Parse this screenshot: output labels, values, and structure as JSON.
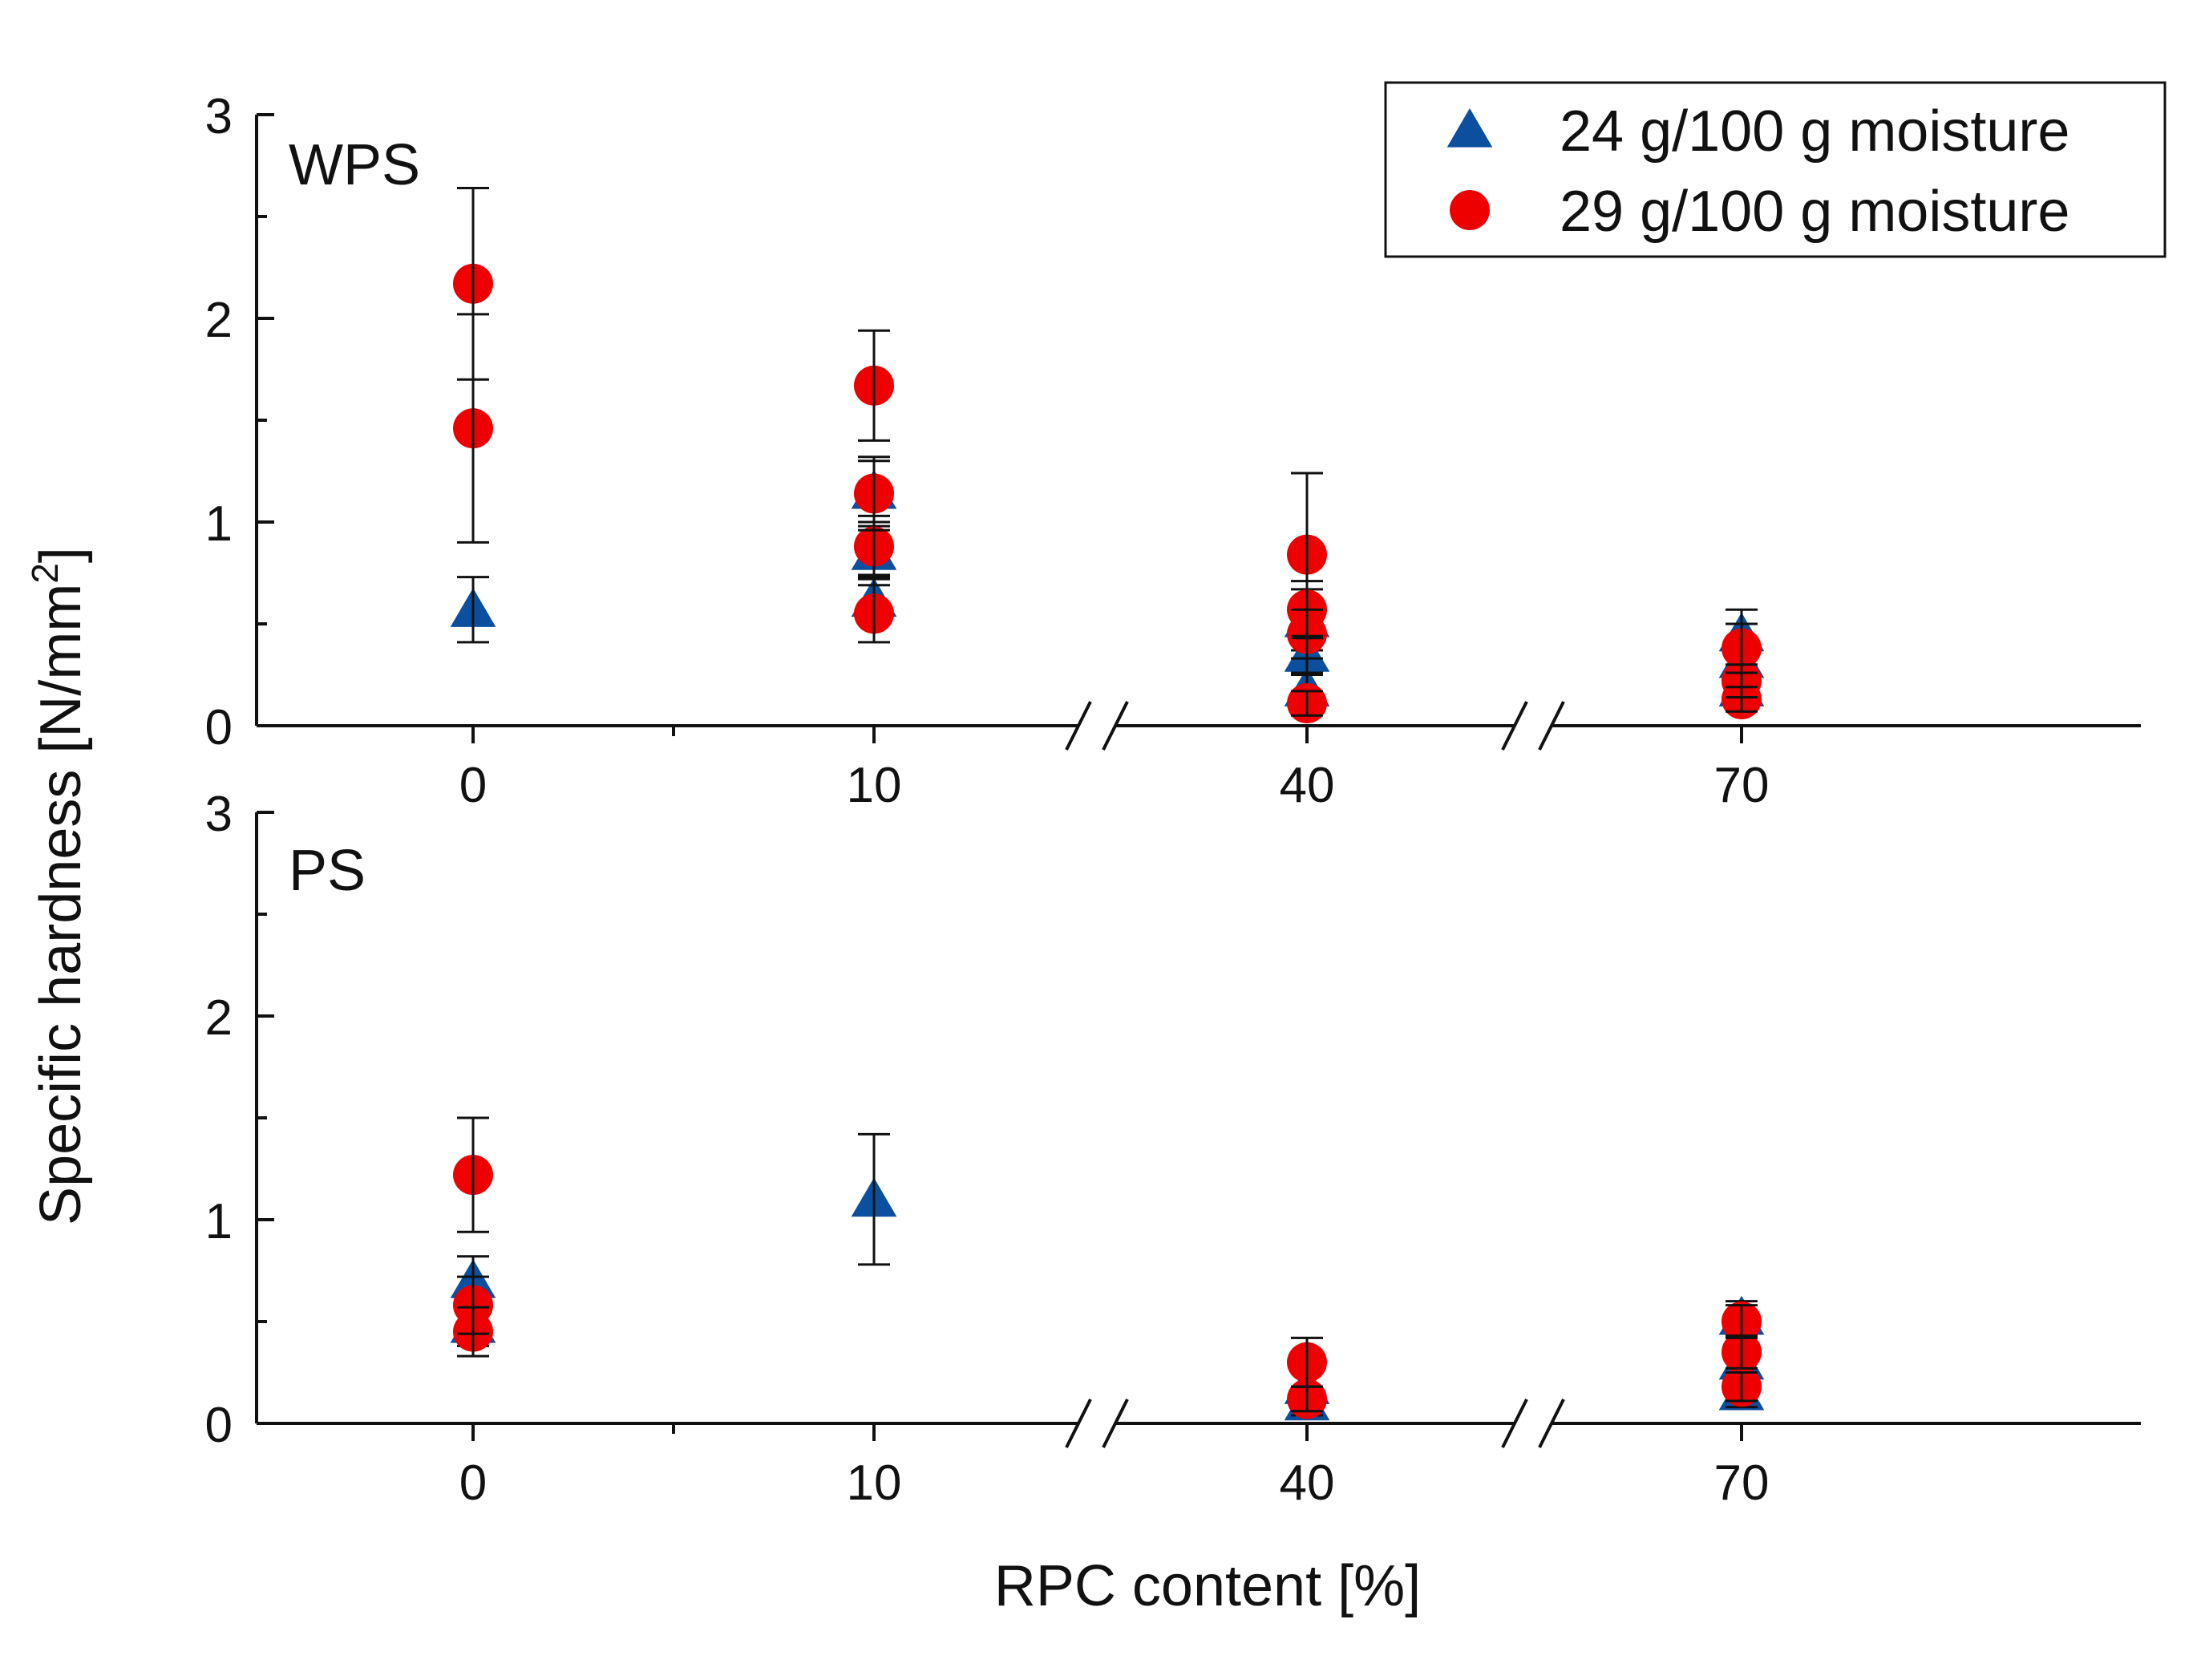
{
  "chart_data": {
    "type": "scatter",
    "ylabel": "Specific hardness [N/mm",
    "ylabel_sup": "2",
    "ylabel_close": "]",
    "xlabel": "RPC content [%]",
    "categories": [
      "0",
      "10",
      "40",
      "70"
    ],
    "x_axis_break": "between 10 and 40, and between 40 and 70",
    "legend_position": "top-right",
    "legend": [
      {
        "name": "24 g/100 g moisture",
        "marker": "triangle",
        "color": "#0b4f9e"
      },
      {
        "name": "29 g/100 g moisture",
        "marker": "circle",
        "color": "#ee0000"
      }
    ],
    "panels": [
      {
        "label": "WPS",
        "ylim": [
          0,
          3
        ],
        "yticks": [
          0,
          1,
          2,
          3
        ],
        "series": [
          {
            "name": "24 g/100 g moisture",
            "points": [
              {
                "x": "0",
                "y": 0.57,
                "err": 0.16
              },
              {
                "x": "10",
                "y": 1.15,
                "err": 0.15
              },
              {
                "x": "10",
                "y": 0.85,
                "err": 0.13
              },
              {
                "x": "10",
                "y": 0.62,
                "err": 0.12
              },
              {
                "x": "40",
                "y": 0.52,
                "err": 0.15
              },
              {
                "x": "40",
                "y": 0.35,
                "err": 0.1
              },
              {
                "x": "40",
                "y": 0.18,
                "err": 0.08
              },
              {
                "x": "70",
                "y": 0.45,
                "err": 0.12
              },
              {
                "x": "70",
                "y": 0.32,
                "err": 0.1
              },
              {
                "x": "70",
                "y": 0.18,
                "err": 0.08
              }
            ]
          },
          {
            "name": "29 g/100 g moisture",
            "points": [
              {
                "x": "0",
                "y": 2.17,
                "err": 0.47
              },
              {
                "x": "0",
                "y": 1.46,
                "err": 0.56
              },
              {
                "x": "10",
                "y": 1.67,
                "err": 0.27
              },
              {
                "x": "10",
                "y": 1.14,
                "err": 0.18
              },
              {
                "x": "10",
                "y": 0.88,
                "err": 0.15
              },
              {
                "x": "10",
                "y": 0.55,
                "err": 0.14
              },
              {
                "x": "40",
                "y": 0.84,
                "err": 0.4
              },
              {
                "x": "40",
                "y": 0.57,
                "err": 0.14
              },
              {
                "x": "40",
                "y": 0.45,
                "err": 0.12
              },
              {
                "x": "40",
                "y": 0.11,
                "err": 0.06
              },
              {
                "x": "70",
                "y": 0.38,
                "err": 0.12
              },
              {
                "x": "70",
                "y": 0.22,
                "err": 0.08
              },
              {
                "x": "70",
                "y": 0.13,
                "err": 0.06
              }
            ]
          }
        ]
      },
      {
        "label": "PS",
        "ylim": [
          0,
          3
        ],
        "yticks": [
          0,
          1,
          2,
          3
        ],
        "series": [
          {
            "name": "24 g/100 g moisture",
            "points": [
              {
                "x": "0",
                "y": 0.7,
                "err": 0.12
              },
              {
                "x": "0",
                "y": 0.48,
                "err": 0.1
              },
              {
                "x": "10",
                "y": 1.1,
                "err": 0.32
              },
              {
                "x": "40",
                "y": 0.18,
                "err": 0.08
              },
              {
                "x": "40",
                "y": 0.1,
                "err": 0.06
              },
              {
                "x": "70",
                "y": 0.52,
                "err": 0.08
              },
              {
                "x": "70",
                "y": 0.3,
                "err": 0.08
              },
              {
                "x": "70",
                "y": 0.15,
                "err": 0.07
              }
            ]
          },
          {
            "name": "29 g/100 g moisture",
            "points": [
              {
                "x": "0",
                "y": 1.22,
                "err": 0.28
              },
              {
                "x": "0",
                "y": 0.58,
                "err": 0.14
              },
              {
                "x": "0",
                "y": 0.45,
                "err": 0.12
              },
              {
                "x": "40",
                "y": 0.3,
                "err": 0.12
              },
              {
                "x": "40",
                "y": 0.12,
                "err": 0.06
              },
              {
                "x": "70",
                "y": 0.5,
                "err": 0.08
              },
              {
                "x": "70",
                "y": 0.35,
                "err": 0.08
              },
              {
                "x": "70",
                "y": 0.18,
                "err": 0.07
              }
            ]
          }
        ]
      }
    ]
  }
}
